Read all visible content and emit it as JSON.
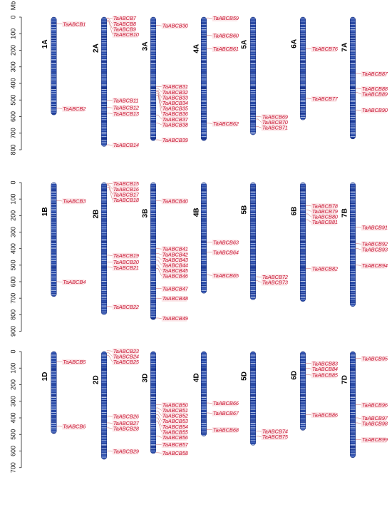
{
  "figure": {
    "unit_label": "Mb",
    "axis_ticks_mb": [
      0,
      100,
      200,
      300,
      400,
      500,
      600,
      700,
      800,
      900
    ],
    "colors": {
      "chromosome_dark": "#1f3f9a",
      "chromosome_light": "#dfe8f8",
      "gene_label": "#c8102e",
      "label_background": "#fbe6e8"
    }
  },
  "panels": [
    {
      "axis_max_mb": 800,
      "chromosomes": [
        {
          "name": "1A",
          "length_mb": 590,
          "genes": [
            {
              "id": "TaABCB1",
              "pos": 40
            },
            {
              "id": "TaABCB2",
              "pos": 550
            }
          ]
        },
        {
          "name": "2A",
          "length_mb": 780,
          "genes": [
            {
              "id": "TaABCB7",
              "pos": 5
            },
            {
              "id": "TaABCB8",
              "pos": 12
            },
            {
              "id": "TaABCB9",
              "pos": 20
            },
            {
              "id": "TaABCB10",
              "pos": 28
            },
            {
              "id": "TaABCB11",
              "pos": 500
            },
            {
              "id": "TaABCB12",
              "pos": 545
            },
            {
              "id": "TaABCB13",
              "pos": 580
            },
            {
              "id": "TaABCB14",
              "pos": 770
            }
          ]
        },
        {
          "name": "3A",
          "length_mb": 745,
          "genes": [
            {
              "id": "TaABCB30",
              "pos": 50
            },
            {
              "id": "TaABCB31",
              "pos": 418
            },
            {
              "id": "TaABCB32",
              "pos": 430
            },
            {
              "id": "TaABCB33",
              "pos": 440
            },
            {
              "id": "TaABCB34",
              "pos": 450
            },
            {
              "id": "TaABCB35",
              "pos": 460
            },
            {
              "id": "TaABCB36",
              "pos": 470
            },
            {
              "id": "TaABCB37",
              "pos": 590
            },
            {
              "id": "TaABCB38",
              "pos": 640
            },
            {
              "id": "TaABCB39",
              "pos": 740
            }
          ]
        },
        {
          "name": "4A",
          "length_mb": 745,
          "genes": [
            {
              "id": "TaABCB59",
              "pos": 5
            },
            {
              "id": "TaABCB60",
              "pos": 110
            },
            {
              "id": "TaABCB61",
              "pos": 190
            },
            {
              "id": "TaABCB62",
              "pos": 640
            }
          ]
        },
        {
          "name": "5A",
          "length_mb": 710,
          "genes": [
            {
              "id": "TaABCB69",
              "pos": 600
            },
            {
              "id": "TaABCB70",
              "pos": 615
            },
            {
              "id": "TaABCB71",
              "pos": 660
            }
          ]
        },
        {
          "name": "6A",
          "length_mb": 620,
          "genes": [
            {
              "id": "TaABCB76",
              "pos": 190
            },
            {
              "id": "TaABCB77",
              "pos": 490
            }
          ]
        },
        {
          "name": "7A",
          "length_mb": 735,
          "genes": [
            {
              "id": "TaABCB87",
              "pos": 340
            },
            {
              "id": "TaABCB88",
              "pos": 430
            },
            {
              "id": "TaABCB89",
              "pos": 455
            },
            {
              "id": "TaABCB90",
              "pos": 560
            }
          ]
        }
      ]
    },
    {
      "axis_max_mb": 900,
      "chromosomes": [
        {
          "name": "1B",
          "length_mb": 690,
          "genes": [
            {
              "id": "TaABCB3",
              "pos": 110
            },
            {
              "id": "TaABCB4",
              "pos": 600
            }
          ]
        },
        {
          "name": "2B",
          "length_mb": 800,
          "genes": [
            {
              "id": "TaABCB15",
              "pos": 5
            },
            {
              "id": "TaABCB16",
              "pos": 12
            },
            {
              "id": "TaABCB17",
              "pos": 20
            },
            {
              "id": "TaABCB18",
              "pos": 28
            },
            {
              "id": "TaABCB19",
              "pos": 440
            },
            {
              "id": "TaABCB20",
              "pos": 480
            },
            {
              "id": "TaABCB21",
              "pos": 510
            },
            {
              "id": "TaABCB22",
              "pos": 750
            }
          ]
        },
        {
          "name": "3B",
          "length_mb": 830,
          "genes": [
            {
              "id": "TaABCB40",
              "pos": 110
            },
            {
              "id": "TaABCB41",
              "pos": 400
            },
            {
              "id": "TaABCB42",
              "pos": 430
            },
            {
              "id": "TaABCB43",
              "pos": 450
            },
            {
              "id": "TaABCB44",
              "pos": 470
            },
            {
              "id": "TaABCB45",
              "pos": 500
            },
            {
              "id": "TaABCB46",
              "pos": 520
            },
            {
              "id": "TaABCB47",
              "pos": 640
            },
            {
              "id": "TaABCB48",
              "pos": 700
            },
            {
              "id": "TaABCB49",
              "pos": 820
            }
          ]
        },
        {
          "name": "4B",
          "length_mb": 670,
          "genes": [
            {
              "id": "TaABCB63",
              "pos": 360
            },
            {
              "id": "TaABCB64",
              "pos": 420
            },
            {
              "id": "TaABCB65",
              "pos": 560
            }
          ]
        },
        {
          "name": "5B",
          "length_mb": 710,
          "genes": [
            {
              "id": "TaABCB72",
              "pos": 570
            },
            {
              "id": "TaABCB73",
              "pos": 595
            }
          ]
        },
        {
          "name": "6B",
          "length_mb": 720,
          "genes": [
            {
              "id": "TaABCB78",
              "pos": 140
            },
            {
              "id": "TaABCB79",
              "pos": 165
            },
            {
              "id": "TaABCB80",
              "pos": 190
            },
            {
              "id": "TaABCB81",
              "pos": 225
            },
            {
              "id": "TaABCB82",
              "pos": 520
            }
          ]
        },
        {
          "name": "7B",
          "length_mb": 750,
          "genes": [
            {
              "id": "TaABCB91",
              "pos": 270
            },
            {
              "id": "TaABCB92",
              "pos": 370
            },
            {
              "id": "TaABCB93",
              "pos": 400
            },
            {
              "id": "TaABCB94",
              "pos": 500
            }
          ]
        }
      ]
    },
    {
      "axis_max_mb": 700,
      "chromosomes": [
        {
          "name": "1D",
          "length_mb": 495,
          "genes": [
            {
              "id": "TaABCB5",
              "pos": 60
            },
            {
              "id": "TaABCB6",
              "pos": 450
            }
          ]
        },
        {
          "name": "2D",
          "length_mb": 650,
          "genes": [
            {
              "id": "TaABCB23",
              "pos": -5
            },
            {
              "id": "TaABCB24",
              "pos": 8
            },
            {
              "id": "TaABCB25",
              "pos": 25
            },
            {
              "id": "TaABCB26",
              "pos": 390
            },
            {
              "id": "TaABCB27",
              "pos": 430
            },
            {
              "id": "TaABCB28",
              "pos": 460
            },
            {
              "id": "TaABCB29",
              "pos": 600
            }
          ]
        },
        {
          "name": "3D",
          "length_mb": 615,
          "genes": [
            {
              "id": "TaABCB50",
              "pos": 320
            },
            {
              "id": "TaABCB51",
              "pos": 340
            },
            {
              "id": "TaABCB52",
              "pos": 360
            },
            {
              "id": "TaABCB53",
              "pos": 380
            },
            {
              "id": "TaABCB54",
              "pos": 400
            },
            {
              "id": "TaABCB55",
              "pos": 420
            },
            {
              "id": "TaABCB56",
              "pos": 510
            },
            {
              "id": "TaABCB57",
              "pos": 560
            },
            {
              "id": "TaABCB58",
              "pos": 610
            }
          ]
        },
        {
          "name": "4D",
          "length_mb": 510,
          "genes": [
            {
              "id": "TaABCB66",
              "pos": 310
            },
            {
              "id": "TaABCB67",
              "pos": 370
            },
            {
              "id": "TaABCB68",
              "pos": 470
            }
          ]
        },
        {
          "name": "5D",
          "length_mb": 565,
          "genes": [
            {
              "id": "TaABCB74",
              "pos": 480
            },
            {
              "id": "TaABCB75",
              "pos": 510
            }
          ]
        },
        {
          "name": "6D",
          "length_mb": 475,
          "genes": [
            {
              "id": "TaABCB83",
              "pos": 70
            },
            {
              "id": "TaABCB84",
              "pos": 100
            },
            {
              "id": "TaABCB85",
              "pos": 140
            },
            {
              "id": "TaABCB86",
              "pos": 380
            }
          ]
        },
        {
          "name": "7D",
          "length_mb": 640,
          "genes": [
            {
              "id": "TaABCB95",
              "pos": 40
            },
            {
              "id": "TaABCB96",
              "pos": 320
            },
            {
              "id": "TaABCB97",
              "pos": 400
            },
            {
              "id": "TaABCB98",
              "pos": 430
            },
            {
              "id": "TaABCB99",
              "pos": 530
            }
          ]
        }
      ]
    }
  ]
}
